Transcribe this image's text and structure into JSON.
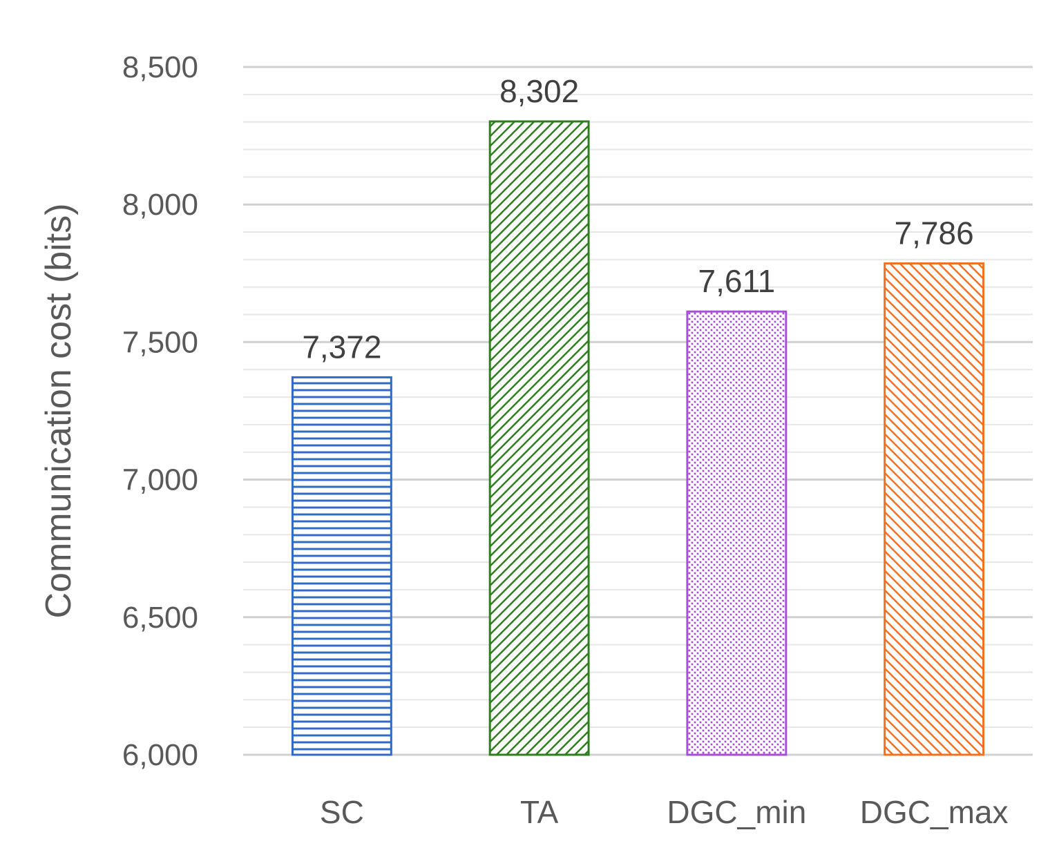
{
  "chart_data": {
    "type": "bar",
    "categories": [
      "SC",
      "TA",
      "DGC_min",
      "DGC_max"
    ],
    "values": [
      7372,
      8302,
      7611,
      7786
    ],
    "value_labels": [
      "7,372",
      "8,302",
      "7,611",
      "7,786"
    ],
    "ylabel": "Communication cost (bits)",
    "ylim": [
      6000,
      8500
    ],
    "y_ticks": [
      6000,
      6500,
      7000,
      7500,
      8000,
      8500
    ],
    "y_tick_labels": [
      "6,000",
      "6,500",
      "7,000",
      "7,500",
      "8,000",
      "8,500"
    ],
    "minor_gridline_step": 100,
    "grid": true,
    "legend": "none",
    "bar_colors": [
      "#2f6bc4",
      "#2e7d1f",
      "#a64fd6",
      "#f07122"
    ],
    "bar_patterns": [
      "horizontal-lines",
      "diagonal-lines-down",
      "dots",
      "diagonal-lines-up"
    ]
  }
}
